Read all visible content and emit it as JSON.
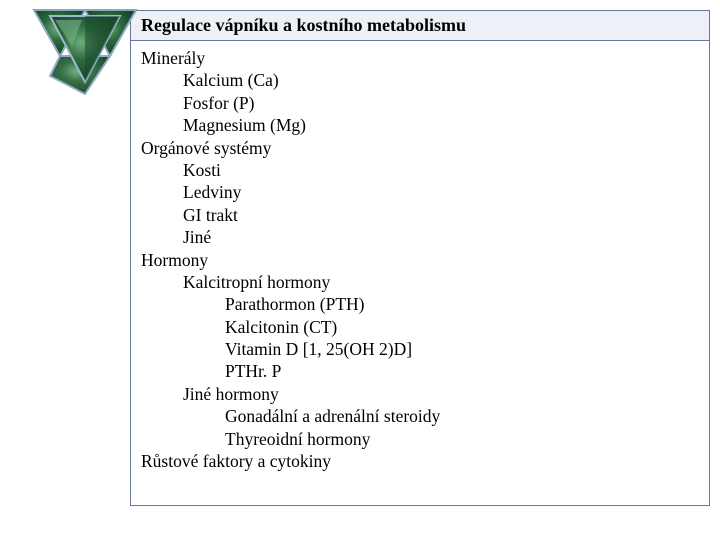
{
  "title": "Regulace vápníku a kostního  metabolismu",
  "triangle": {
    "outer_fill_dark": "#1a4a2e",
    "outer_fill_mid": "#2d6b3f",
    "outer_fill_light": "#4a8a5c",
    "stroke": "#88a8c0",
    "stroke_width": 2
  },
  "colors": {
    "border": "#667799",
    "title_bg": "#eef0f8",
    "text": "#000000",
    "page_bg": "#ffffff"
  },
  "font": {
    "family": "Comic Sans MS",
    "title_size": 18,
    "body_size": 17.5
  },
  "outline": [
    {
      "level": 0,
      "text": "Minerály"
    },
    {
      "level": 1,
      "text": "Kalcium (Ca)"
    },
    {
      "level": 1,
      "text": "Fosfor (P)"
    },
    {
      "level": 1,
      "text": "Magnesium (Mg)"
    },
    {
      "level": 0,
      "text": "Orgánové systémy"
    },
    {
      "level": 1,
      "text": "Kosti"
    },
    {
      "level": 1,
      "text": "Ledviny"
    },
    {
      "level": 1,
      "text": "GI trakt"
    },
    {
      "level": 1,
      "text": "Jiné"
    },
    {
      "level": 0,
      "text": "Hormony"
    },
    {
      "level": 1,
      "text": "Kalcitropní hormony"
    },
    {
      "level": 2,
      "text": "Parathormon (PTH)"
    },
    {
      "level": 2,
      "text": "Kalcitonin (CT)"
    },
    {
      "level": 2,
      "text": "Vitamin D [1, 25(OH 2)D]"
    },
    {
      "level": 2,
      "text": "PTHr. P"
    },
    {
      "level": 1,
      "text": "Jiné hormony"
    },
    {
      "level": 2,
      "text": "Gonadální a adrenální steroidy"
    },
    {
      "level": 2,
      "text": "Thyreoidní hormony"
    },
    {
      "level": 0,
      "text": "Růstové faktory a cytokiny"
    }
  ]
}
